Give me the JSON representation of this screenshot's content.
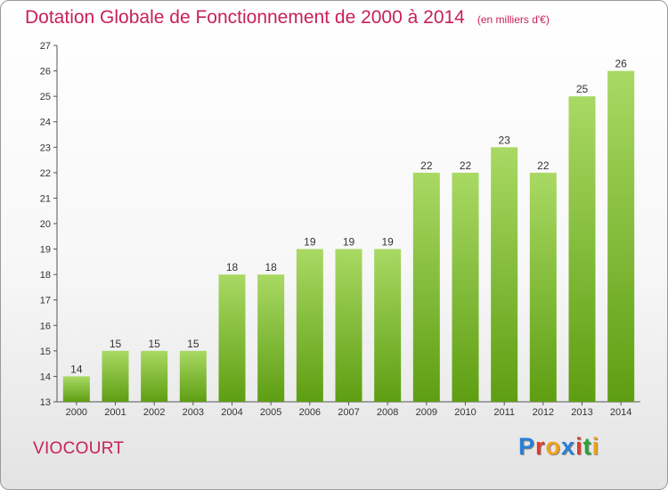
{
  "header": {
    "title": "Dotation Globale de Fonctionnement de 2000 à 2014",
    "unit": "(en milliers d'€)"
  },
  "footer": {
    "commune": "VIOCOURT",
    "logo": [
      "P",
      "r",
      "o",
      "x",
      "i",
      "t",
      "i"
    ],
    "logo_colors": [
      "#2a7fd4",
      "#e63a25",
      "#f0a21c",
      "#2a7fd4",
      "#e63a25",
      "#27a53a",
      "#f0a21c"
    ]
  },
  "colors": {
    "bar_top": "#a9d964",
    "bar_bottom": "#5e9e12",
    "title": "#c8205a"
  },
  "chart_data": {
    "type": "bar",
    "categories": [
      "2000",
      "2001",
      "2002",
      "2003",
      "2004",
      "2005",
      "2006",
      "2007",
      "2008",
      "2009",
      "2010",
      "2011",
      "2012",
      "2013",
      "2014"
    ],
    "values": [
      14,
      15,
      15,
      15,
      18,
      18,
      19,
      19,
      19,
      22,
      22,
      23,
      22,
      25,
      26
    ],
    "ylim": [
      13,
      27
    ],
    "yticks": [
      13,
      14,
      15,
      16,
      17,
      18,
      19,
      20,
      21,
      22,
      23,
      24,
      25,
      26,
      27
    ],
    "grid": false,
    "data_labels": true
  }
}
